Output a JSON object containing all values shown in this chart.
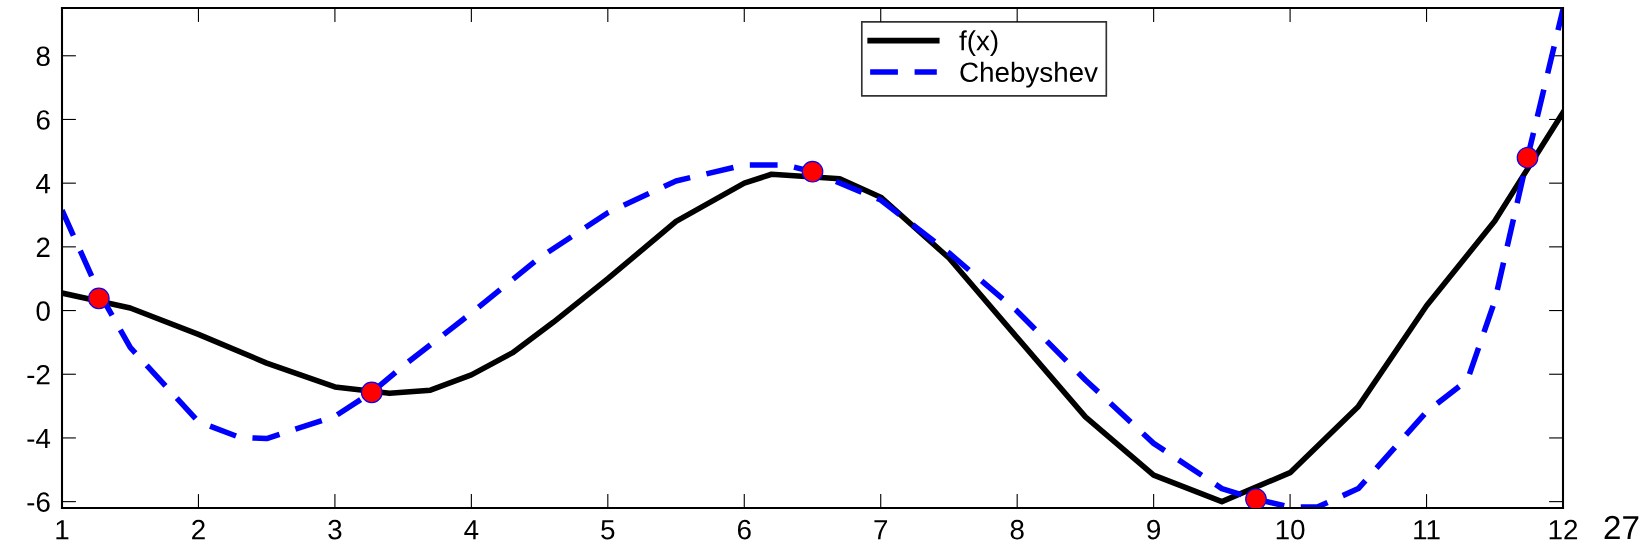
{
  "chart_data": {
    "type": "line",
    "xlim": [
      1,
      12
    ],
    "ylim": [
      -6.2,
      9.5
    ],
    "xticks": [
      1,
      2,
      3,
      4,
      5,
      6,
      7,
      8,
      9,
      10,
      11,
      12
    ],
    "yticks": [
      -6,
      -4,
      -2,
      0,
      2,
      4,
      6,
      8
    ],
    "grid": false,
    "legend": "top right",
    "annotations": [
      "27"
    ],
    "series": [
      {
        "name": "f(x)",
        "color": "#000000",
        "line_style": "solid",
        "marker": "none",
        "x": [
          1,
          1.5,
          2,
          2.5,
          3,
          3.4,
          3.7,
          4,
          4.3,
          4.6,
          5,
          5.5,
          6,
          6.2,
          6.7,
          7,
          7.5,
          8,
          8.5,
          9,
          9.5,
          10,
          10.5,
          11,
          11.5,
          12
        ],
        "values": [
          0.55,
          0.08,
          -0.75,
          -1.65,
          -2.4,
          -2.6,
          -2.5,
          -2.02,
          -1.33,
          -0.37,
          1.0,
          2.8,
          4.0,
          4.28,
          4.14,
          3.56,
          1.65,
          -0.85,
          -3.34,
          -5.17,
          -6.0,
          -5.09,
          -3.01,
          0.15,
          2.81,
          6.22
        ]
      },
      {
        "name": "Chebyshev",
        "color": "#0000ff",
        "line_style": "dashed",
        "marker": "none",
        "x": [
          1,
          1.27,
          1.5,
          2,
          2.3,
          2.5,
          3,
          3.27,
          3.5,
          4,
          4.5,
          5,
          5.5,
          6,
          6.3,
          6.5,
          7,
          7.5,
          8,
          8.5,
          9,
          9.5,
          9.75,
          10,
          10.2,
          10.5,
          11,
          11.3,
          11.5,
          11.74,
          12
        ],
        "values": [
          3.15,
          0.58,
          -1.16,
          -3.49,
          -3.98,
          -4.02,
          -3.32,
          -2.57,
          -1.74,
          -0.08,
          1.66,
          3.07,
          4.07,
          4.57,
          4.57,
          4.36,
          3.47,
          1.81,
          -0.02,
          -2.18,
          -4.17,
          -5.59,
          -5.92,
          -6.17,
          -6.17,
          -5.59,
          -3.18,
          -2.18,
          0.3,
          4.8,
          9.46
        ]
      },
      {
        "type": "scatter",
        "color": "#ff0000",
        "marker": "circle",
        "x": [
          1.27,
          3.27,
          6.5,
          9.75,
          11.74
        ],
        "values": [
          0.38,
          -2.57,
          4.36,
          -5.92,
          4.8
        ]
      }
    ]
  }
}
